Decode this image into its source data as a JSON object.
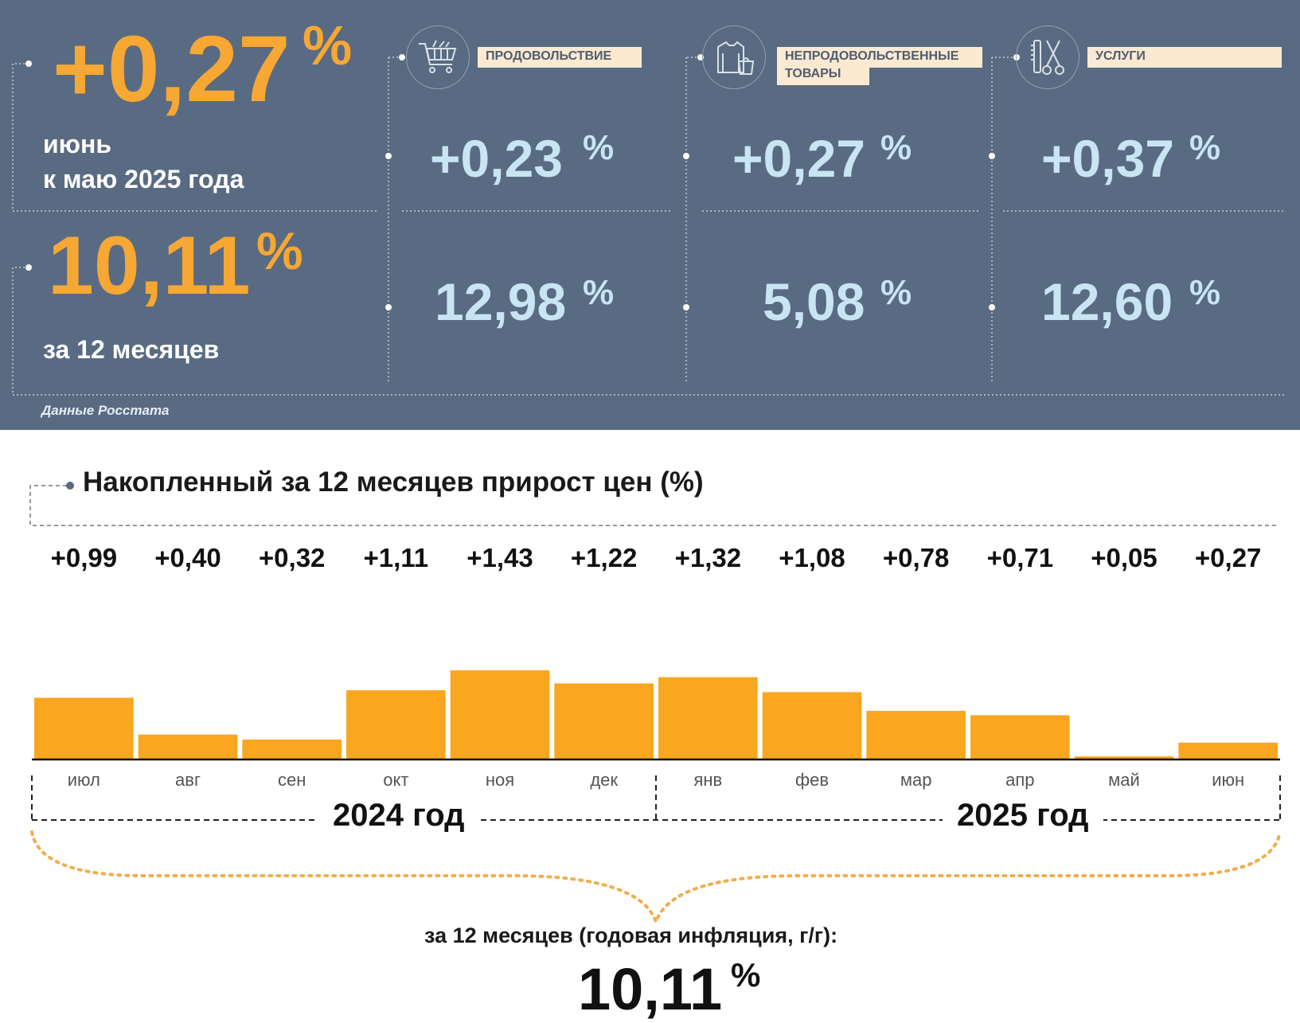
{
  "panel": {
    "monthly": {
      "value": "+0,27",
      "unit": "%",
      "caption_line1": "июнь",
      "caption_line2": "к маю 2025 года"
    },
    "annual": {
      "value": "10,11",
      "unit": "%",
      "caption": "за 12 месяцев"
    },
    "source": "Данные Росстата",
    "categories": [
      {
        "label": "ПРОДОВОЛЬСТВИЕ",
        "icon": "shopping-cart-icon",
        "monthly": "+0,23",
        "annual": "12,98",
        "unit": "%"
      },
      {
        "label_line1": "НЕПРОДОВОЛЬСТВЕННЫЕ",
        "label_line2": "ТОВАРЫ",
        "icon": "clothing-bag-icon",
        "monthly": "+0,27",
        "annual": "5,08",
        "unit": "%"
      },
      {
        "label": "УСЛУГИ",
        "icon": "comb-scissors-icon",
        "monthly": "+0,37",
        "annual": "12,60",
        "unit": "%"
      }
    ]
  },
  "colors": {
    "panel_bg": "#586b82",
    "accent_orange": "#f7a733",
    "light_blue": "#c9e4f2",
    "label_bg": "#fbe9d2",
    "bar": "#fba61f"
  },
  "chart": {
    "title": "Накопленный за 12 месяцев прирост цен (%)",
    "years": [
      "2024 год",
      "2025 год"
    ],
    "caption": "за 12 месяцев (годовая инфляция, г/г):",
    "final_value": "10,11",
    "final_unit": "%"
  },
  "chart_data": {
    "type": "bar",
    "categories": [
      "июл",
      "авг",
      "сен",
      "окт",
      "ноя",
      "дек",
      "янв",
      "фев",
      "мар",
      "апр",
      "май",
      "июн"
    ],
    "values": [
      0.99,
      0.4,
      0.32,
      1.11,
      1.43,
      1.22,
      1.32,
      1.08,
      0.78,
      0.71,
      0.05,
      0.27
    ],
    "value_labels": [
      "+0,99",
      "+0,40",
      "+0,32",
      "+1,11",
      "+1,43",
      "+1,22",
      "+1,32",
      "+1,08",
      "+0,78",
      "+0,71",
      "+0,05",
      "+0,27"
    ],
    "title": "Накопленный за 12 месяцев прирост цен (%)",
    "ylim": [
      0,
      1.43
    ],
    "grid": false,
    "legend": "none"
  }
}
